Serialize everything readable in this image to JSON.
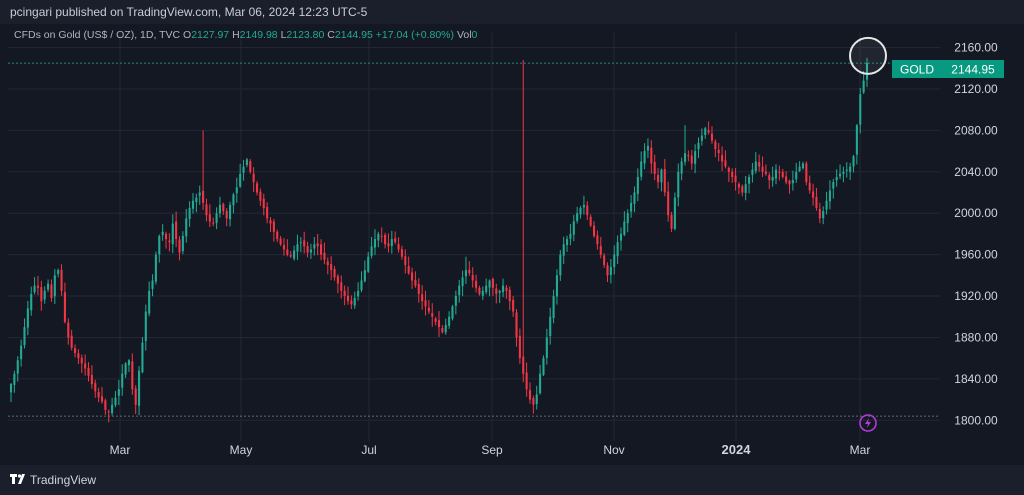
{
  "header": {
    "published": "pcingari published on TradingView.com, Mar 06, 2024 12:23 UTC-5"
  },
  "legend": {
    "symbol": "CFDs on Gold (US$ / OZ), 1D, TVC",
    "o_label": "O",
    "o": "2127.97",
    "h_label": "H",
    "h": "2149.98",
    "l_label": "L",
    "l": "2123.80",
    "c_label": "C",
    "c": "2144.95",
    "change": "+17.04 (+0.80%)",
    "vol_label": "Vol",
    "vol": "0"
  },
  "price_tag": {
    "label": "GOLD",
    "value": "2144.95"
  },
  "footer": {
    "brand": "TradingView"
  },
  "colors": {
    "up": "#22ab94",
    "down": "#f23645",
    "bg": "#141823",
    "grid": "#232634",
    "text": "#d1d4dc"
  },
  "chart_data": {
    "type": "candlestick",
    "ylim": [
      1780,
      2175
    ],
    "y_ticks": [
      "2160.00",
      "2120.00",
      "2080.00",
      "2040.00",
      "2000.00",
      "1960.00",
      "1920.00",
      "1880.00",
      "1840.00",
      "1800.00"
    ],
    "x_ticks": [
      "Mar",
      "May",
      "Jul",
      "Sep",
      "Nov",
      "2024",
      "Mar"
    ],
    "last_price": 2144.95,
    "reference_low": 1804,
    "closes": [
      1835,
      1845,
      1858,
      1872,
      1890,
      1908,
      1922,
      1930,
      1928,
      1915,
      1925,
      1932,
      1918,
      1940,
      1945,
      1925,
      1895,
      1880,
      1870,
      1865,
      1860,
      1855,
      1850,
      1843,
      1835,
      1828,
      1822,
      1818,
      1810,
      1808,
      1815,
      1822,
      1830,
      1845,
      1855,
      1858,
      1830,
      1815,
      1848,
      1875,
      1905,
      1925,
      1935,
      1960,
      1978,
      1982,
      1975,
      1972,
      1990,
      1975,
      1962,
      1978,
      1995,
      2005,
      2012,
      2015,
      2020,
      2010,
      1998,
      1992,
      1990,
      2000,
      2008,
      2002,
      1995,
      2008,
      2018,
      2025,
      2038,
      2045,
      2052,
      2040,
      2030,
      2020,
      2012,
      2005,
      1995,
      1990,
      1982,
      1975,
      1970,
      1965,
      1960,
      1958,
      1964,
      1970,
      1972,
      1968,
      1962,
      1965,
      1970,
      1968,
      1960,
      1955,
      1950,
      1945,
      1938,
      1932,
      1925,
      1920,
      1915,
      1912,
      1918,
      1925,
      1935,
      1945,
      1958,
      1968,
      1975,
      1980,
      1978,
      1970,
      1968,
      1975,
      1972,
      1965,
      1958,
      1950,
      1942,
      1935,
      1930,
      1922,
      1915,
      1910,
      1905,
      1900,
      1895,
      1890,
      1885,
      1892,
      1900,
      1910,
      1920,
      1930,
      1938,
      1945,
      1942,
      1935,
      1928,
      1922,
      1925,
      1930,
      1935,
      1928,
      1922,
      1925,
      1930,
      1925,
      1915,
      1905,
      1880,
      1860,
      1845,
      1830,
      1820,
      1815,
      1825,
      1845,
      1860,
      1880,
      1900,
      1920,
      1940,
      1960,
      1970,
      1975,
      1980,
      1992,
      2000,
      2005,
      2008,
      1998,
      1988,
      1978,
      1970,
      1960,
      1950,
      1940,
      1948,
      1960,
      1972,
      1980,
      1992,
      2000,
      2010,
      2020,
      2035,
      2050,
      2060,
      2065,
      2048,
      2038,
      2030,
      2042,
      2020,
      1998,
      1985,
      2015,
      2040,
      2050,
      2058,
      2055,
      2048,
      2060,
      2068,
      2075,
      2082,
      2078,
      2070,
      2062,
      2058,
      2050,
      2045,
      2040,
      2035,
      2030,
      2025,
      2020,
      2028,
      2035,
      2042,
      2050,
      2045,
      2040,
      2038,
      2032,
      2035,
      2042,
      2040,
      2035,
      2030,
      2028,
      2032,
      2040,
      2045,
      2048,
      2030,
      2022,
      2015,
      2005,
      1995,
      2002,
      2012,
      2022,
      2030,
      2035,
      2038,
      2040,
      2042,
      2045,
      2055,
      2085,
      2115,
      2128,
      2145
    ]
  }
}
